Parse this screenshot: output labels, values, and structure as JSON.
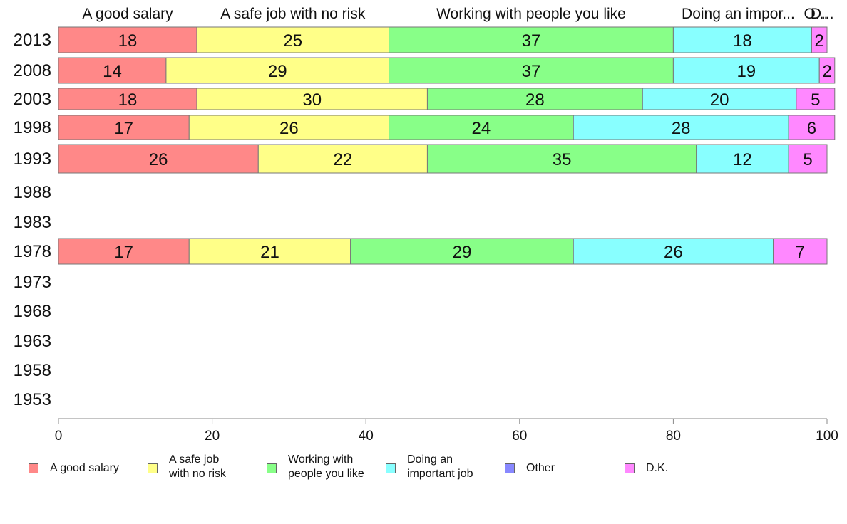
{
  "chart_data": {
    "type": "bar",
    "orientation": "horizontal",
    "stacked": true,
    "categories": [
      "2013",
      "2008",
      "2003",
      "1998",
      "1993",
      "1988",
      "1983",
      "1978",
      "1973",
      "1968",
      "1963",
      "1958",
      "1953"
    ],
    "series": [
      {
        "name": "A good salary",
        "color": "#ff8888",
        "values": [
          18,
          14,
          18,
          17,
          26,
          null,
          null,
          17,
          null,
          null,
          null,
          null,
          null
        ]
      },
      {
        "name": "A safe job with no risk",
        "color": "#ffff88",
        "values": [
          25,
          29,
          30,
          26,
          22,
          null,
          null,
          21,
          null,
          null,
          null,
          null,
          null
        ]
      },
      {
        "name": "Working with people you like",
        "color": "#88ff88",
        "values": [
          37,
          37,
          28,
          24,
          35,
          null,
          null,
          29,
          null,
          null,
          null,
          null,
          null
        ]
      },
      {
        "name": "Doing an important job",
        "color": "#88ffff",
        "values": [
          18,
          19,
          20,
          28,
          12,
          null,
          null,
          26,
          null,
          null,
          null,
          null,
          null
        ]
      },
      {
        "name": "Other",
        "color": "#8888ff",
        "values": [
          0,
          0,
          0,
          0,
          0,
          null,
          null,
          0,
          null,
          null,
          null,
          null,
          null
        ]
      },
      {
        "name": "D.K.",
        "color": "#ff88ff",
        "values": [
          2,
          2,
          5,
          6,
          5,
          null,
          null,
          7,
          null,
          null,
          null,
          null,
          null
        ]
      }
    ],
    "top_labels": [
      "A good salary",
      "A safe job with no risk",
      "Working with people you like",
      "Doing an impor...",
      "O...",
      "D..."
    ],
    "xlim": [
      0,
      100
    ],
    "xticks": [
      0,
      20,
      40,
      60,
      80,
      100
    ],
    "legend_position": "bottom",
    "legend_labels": [
      "A good salary",
      "A safe job\nwith no risk",
      "Working with\npeople you like",
      "Doing an\nimportant job",
      "Other",
      "D.K."
    ]
  }
}
